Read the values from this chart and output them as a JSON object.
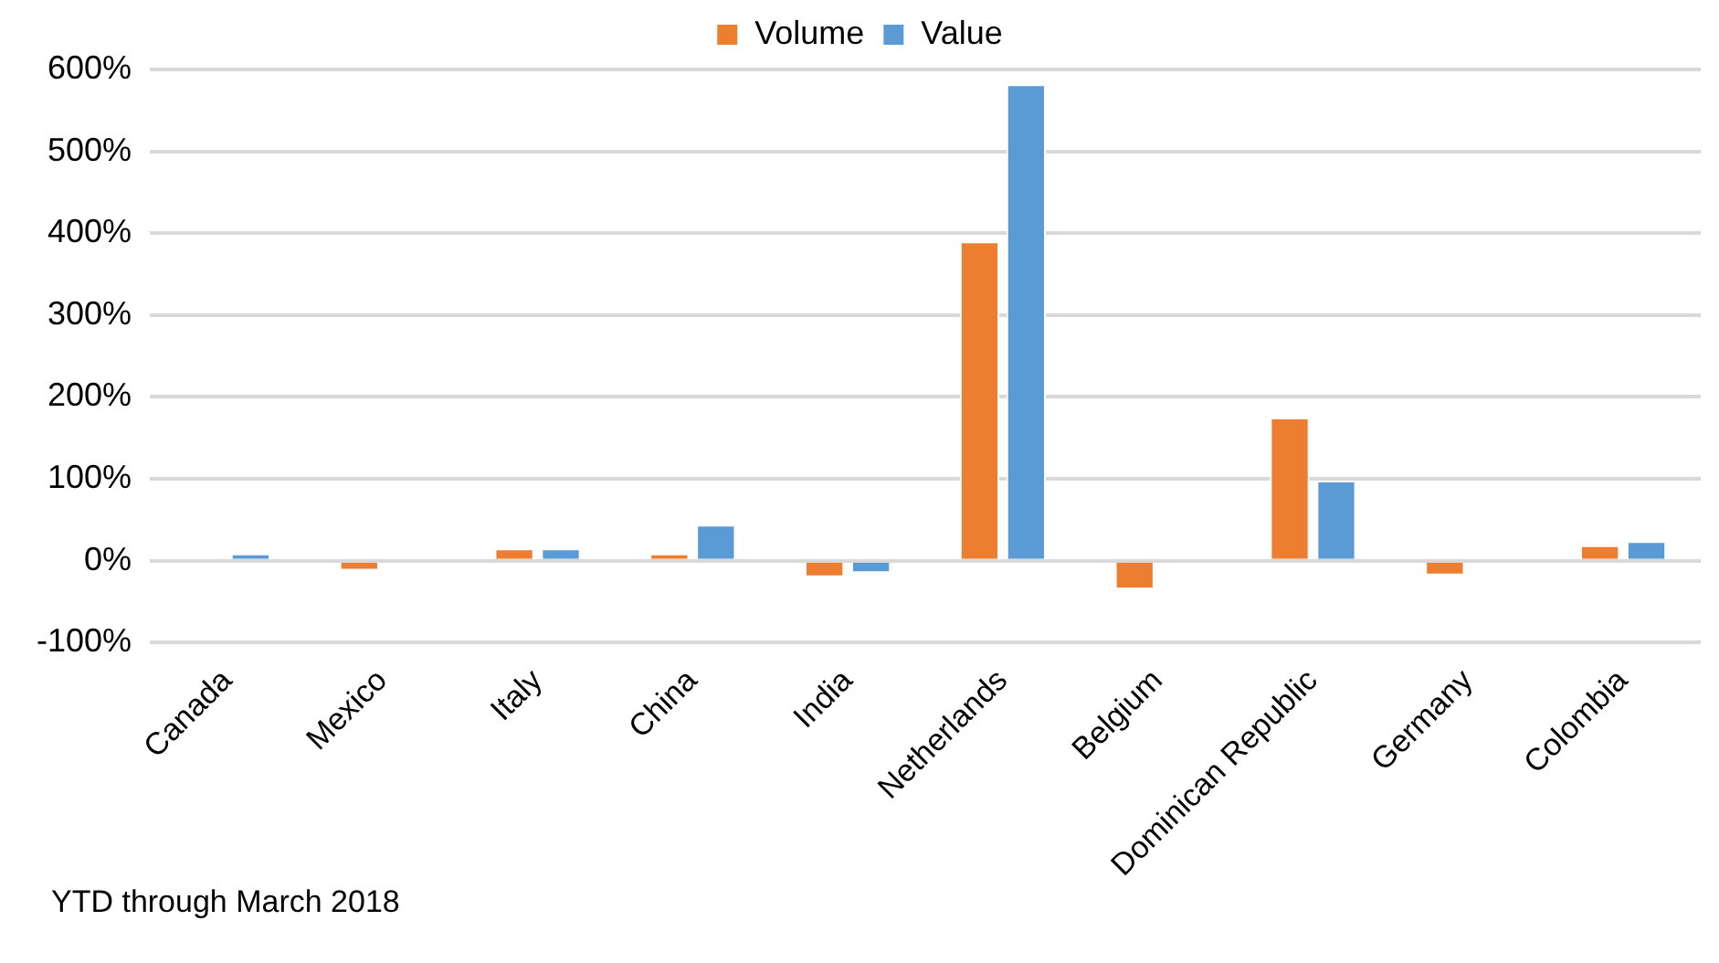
{
  "chart_data": {
    "type": "bar",
    "categories": [
      "Canada",
      "Mexico",
      "Italy",
      "China",
      "India",
      "Netherlands",
      "Belgium",
      "Dominican Republic",
      "Germany",
      "Colombia"
    ],
    "series": [
      {
        "name": "Volume",
        "color": "#ed7d31",
        "values": [
          null,
          -12,
          15,
          9,
          -20,
          390,
          -35,
          175,
          -18,
          19
        ]
      },
      {
        "name": "Value",
        "color": "#5b9bd5",
        "values": [
          9,
          null,
          15,
          44,
          -15,
          582,
          null,
          98,
          null,
          24
        ]
      }
    ],
    "ylim": [
      -100,
      600
    ],
    "yticks": [
      {
        "value": -100,
        "label": "-100%"
      },
      {
        "value": 0,
        "label": "0%"
      },
      {
        "value": 100,
        "label": "100%"
      },
      {
        "value": 200,
        "label": "200%"
      },
      {
        "value": 300,
        "label": "300%"
      },
      {
        "value": 400,
        "label": "400%"
      },
      {
        "value": 500,
        "label": "500%"
      },
      {
        "value": 600,
        "label": "600%"
      }
    ],
    "grid": "y",
    "legend": "top",
    "annotations": [
      "YTD through March 2018"
    ]
  }
}
